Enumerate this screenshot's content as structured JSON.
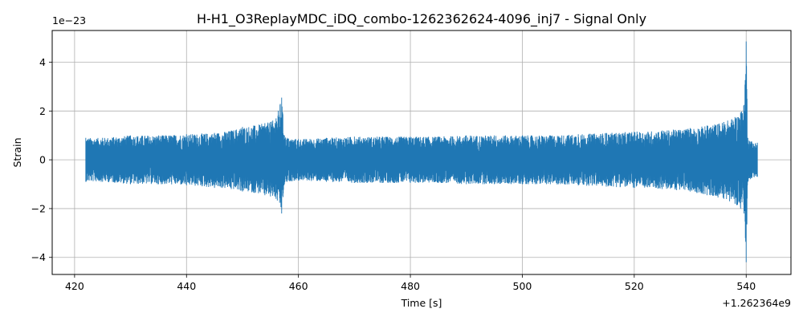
{
  "chart_data": {
    "type": "line",
    "title": "H-H1_O3ReplayMDC_iDQ_combo-1262362624-4096_inj7 - Signal Only",
    "xlabel": "Time [s]",
    "ylabel": "Strain",
    "x_offset_label": "+1.262364e9",
    "y_scale_label": "1e−23",
    "xlim": [
      416,
      548
    ],
    "ylim": [
      -4.7,
      5.3
    ],
    "x_ticks": [
      420,
      440,
      460,
      480,
      500,
      520,
      540
    ],
    "x_tick_labels": [
      "420",
      "440",
      "460",
      "480",
      "500",
      "520",
      "540"
    ],
    "y_ticks": [
      -4,
      -2,
      0,
      2,
      4
    ],
    "y_tick_labels": [
      "−4",
      "−2",
      "0",
      "2",
      "4"
    ],
    "grid": true,
    "legend": "none",
    "series": [
      {
        "color": "#1f77b4",
        "x": [
          422.0,
          425,
          430,
          435,
          440,
          445,
          448,
          450,
          452,
          454,
          455,
          456,
          457.0,
          457.5,
          458,
          460,
          465,
          470,
          475,
          480,
          485,
          490,
          495,
          500,
          505,
          510,
          515,
          520,
          525,
          530,
          533,
          536,
          538,
          539,
          539.6,
          540.0,
          540.3,
          541,
          542.0
        ],
        "upper": [
          0.9,
          0.9,
          1.0,
          1.0,
          1.05,
          1.1,
          1.2,
          1.35,
          1.4,
          1.5,
          1.55,
          1.7,
          2.55,
          1.0,
          0.9,
          0.85,
          0.9,
          0.95,
          0.95,
          0.95,
          0.95,
          1.0,
          1.0,
          1.0,
          1.0,
          1.05,
          1.1,
          1.15,
          1.2,
          1.3,
          1.4,
          1.55,
          1.75,
          1.95,
          2.25,
          4.85,
          0.9,
          0.75,
          0.7
        ],
        "lower": [
          -0.9,
          -0.9,
          -1.0,
          -1.0,
          -1.05,
          -1.15,
          -1.2,
          -1.3,
          -1.35,
          -1.45,
          -1.5,
          -1.6,
          -2.2,
          -1.0,
          -0.9,
          -0.85,
          -0.9,
          -0.95,
          -0.95,
          -0.95,
          -0.95,
          -1.0,
          -1.0,
          -1.0,
          -1.0,
          -1.05,
          -1.1,
          -1.15,
          -1.2,
          -1.3,
          -1.45,
          -1.6,
          -1.8,
          -2.0,
          -2.2,
          -4.2,
          -0.9,
          -0.75,
          -0.7
        ]
      }
    ]
  }
}
